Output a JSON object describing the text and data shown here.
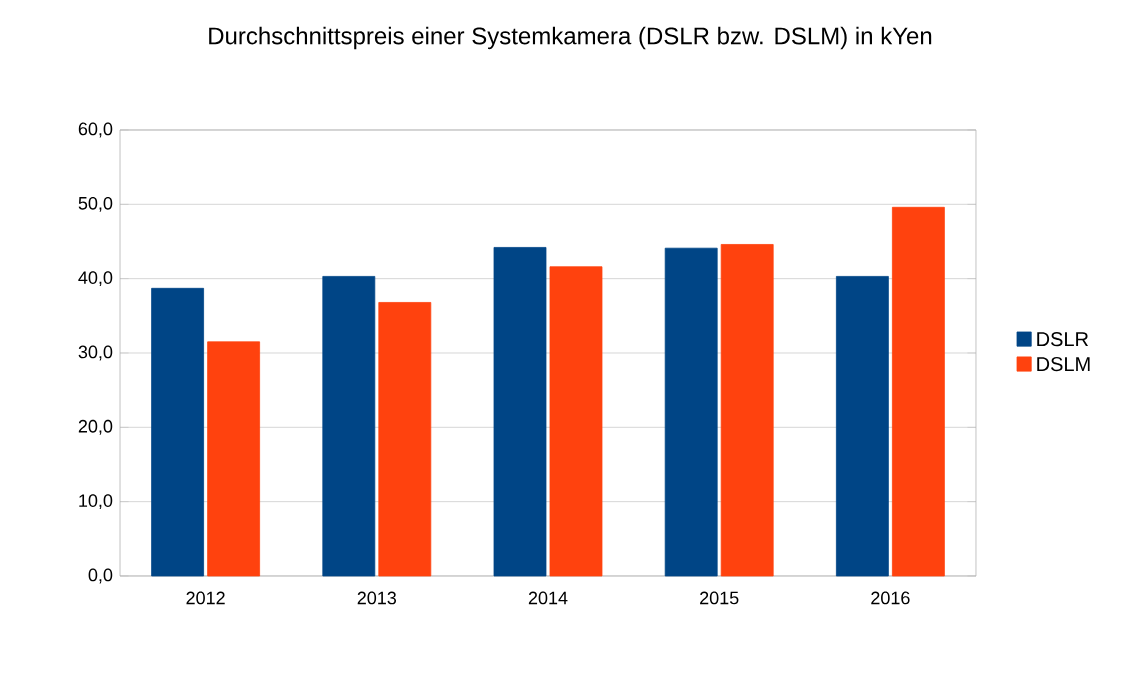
{
  "chart_data": {
    "type": "bar",
    "title": "Durchschnittspreis einer Systemkamera (DSLR bzw. DSLM) in kYen",
    "categories": [
      "2012",
      "2013",
      "2014",
      "2015",
      "2016"
    ],
    "series": [
      {
        "name": "DSLR",
        "color": "#004586",
        "values": [
          38.7,
          40.3,
          44.2,
          44.1,
          40.3
        ]
      },
      {
        "name": "DSLM",
        "color": "#ff420e",
        "values": [
          31.5,
          36.8,
          41.6,
          44.6,
          49.6
        ]
      }
    ],
    "ylim": [
      0,
      60
    ],
    "yticks": [
      {
        "value": 0,
        "label": "0,0"
      },
      {
        "value": 10,
        "label": "10,0"
      },
      {
        "value": 20,
        "label": "20,0"
      },
      {
        "value": 30,
        "label": "30,0"
      },
      {
        "value": 40,
        "label": "40,0"
      },
      {
        "value": 50,
        "label": "50,0"
      },
      {
        "value": 60,
        "label": "60,0"
      }
    ],
    "grid": "y",
    "legend": "right"
  }
}
